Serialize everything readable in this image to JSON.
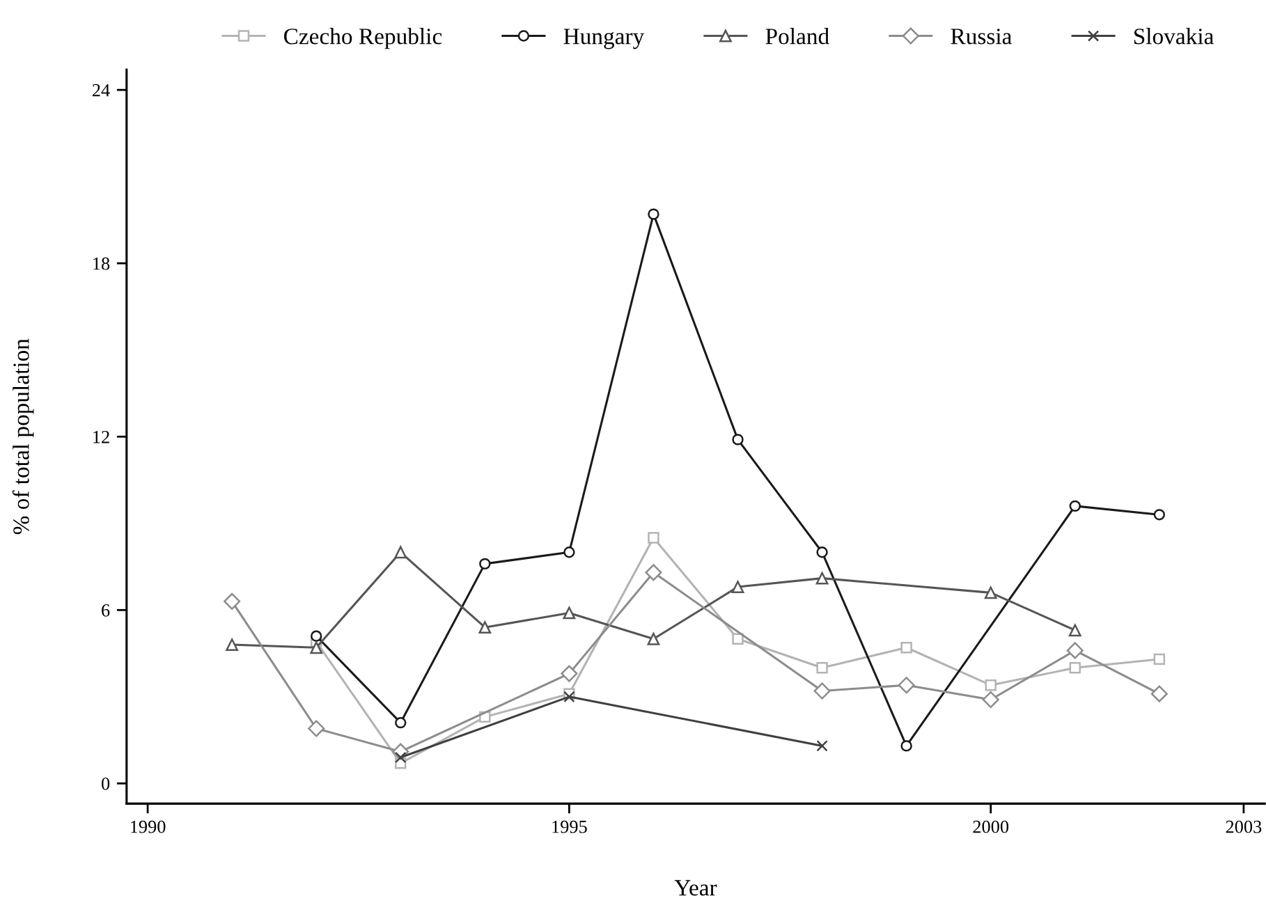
{
  "chart_data": {
    "type": "line",
    "xlabel": "Year",
    "ylabel": "% of total population",
    "xlim": [
      1989.75,
      2003.25
    ],
    "xticks": [
      1990,
      1995,
      2000,
      2003
    ],
    "ylim": [
      -0.7,
      24.7
    ],
    "yticks": [
      0,
      6,
      12,
      18,
      24
    ],
    "grid": false,
    "legend": "top",
    "line_style": "solid",
    "series": [
      {
        "name": "Czecho Republic",
        "color": "#b3b3b3",
        "marker": "square",
        "x": [
          1992,
          1993,
          1994,
          1995,
          1996,
          1997,
          1998,
          1999,
          2000,
          2001,
          2002
        ],
        "values": [
          4.9,
          0.7,
          2.3,
          3.1,
          8.5,
          5.0,
          4.0,
          4.7,
          3.4,
          4.0,
          4.3
        ]
      },
      {
        "name": "Hungary",
        "color": "#1a1a1a",
        "marker": "circle",
        "x": [
          1992,
          1993,
          1994,
          1995,
          1996,
          1997,
          1998,
          1999,
          2001,
          2002
        ],
        "values": [
          5.1,
          2.1,
          7.6,
          8.0,
          19.7,
          11.9,
          8.0,
          1.3,
          9.6,
          9.3
        ]
      },
      {
        "name": "Poland",
        "color": "#555555",
        "marker": "triangle",
        "x": [
          1991,
          1992,
          1993,
          1994,
          1995,
          1996,
          1997,
          1998,
          2000,
          2001
        ],
        "values": [
          4.8,
          4.7,
          8.0,
          5.4,
          5.9,
          5.0,
          6.8,
          7.1,
          6.6,
          5.3
        ]
      },
      {
        "name": "Russia",
        "color": "#8c8c8c",
        "marker": "diamond",
        "x": [
          1991,
          1992,
          1993,
          1995,
          1996,
          1998,
          1999,
          2000,
          2001,
          2002
        ],
        "values": [
          6.3,
          1.9,
          1.1,
          3.8,
          7.3,
          3.2,
          3.4,
          2.9,
          4.6,
          3.1
        ]
      },
      {
        "name": "Slovakia",
        "color": "#404040",
        "marker": "cross",
        "x": [
          1993,
          1995,
          1998
        ],
        "values": [
          0.9,
          3.0,
          1.3
        ]
      }
    ]
  }
}
